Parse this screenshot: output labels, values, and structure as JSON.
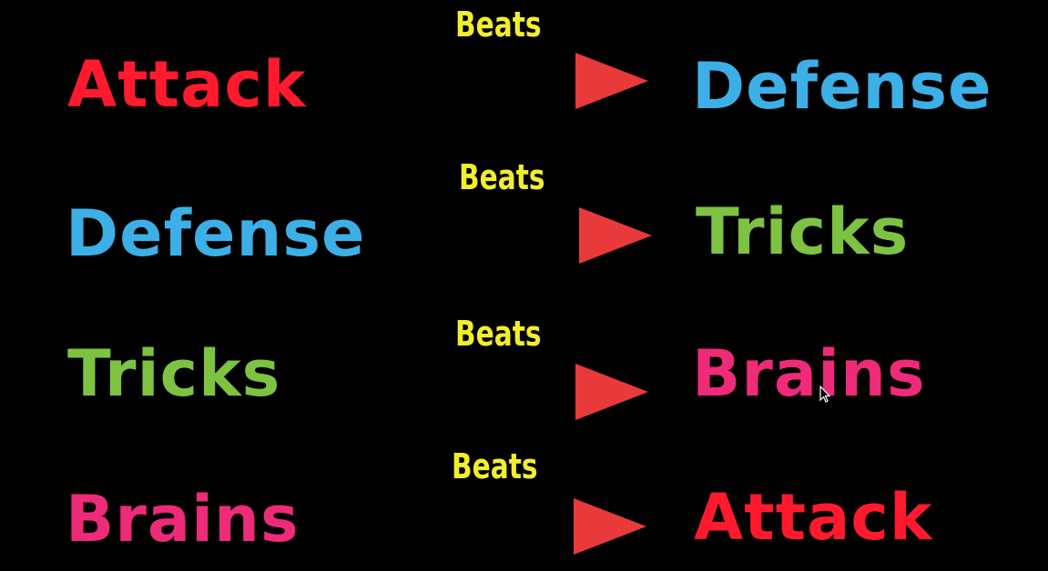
{
  "rows": [
    {
      "left": {
        "text": "Attack",
        "color": "#ff1a2e"
      },
      "verb": "Beats",
      "right": {
        "text": "Defense",
        "color": "#3cb0e6"
      }
    },
    {
      "left": {
        "text": "Defense",
        "color": "#3cb0e6"
      },
      "verb": "Beats",
      "right": {
        "text": "Tricks",
        "color": "#7ec242"
      }
    },
    {
      "left": {
        "text": "Tricks",
        "color": "#7ec242"
      },
      "verb": "Beats",
      "right": {
        "text": "Brains",
        "color": "#ee2b78"
      }
    },
    {
      "left": {
        "text": "Brains",
        "color": "#ee2b78"
      },
      "verb": "Beats",
      "right": {
        "text": "Attack",
        "color": "#ff1a2e"
      }
    }
  ],
  "colors": {
    "background": "#000000",
    "verb": "#f3ee2b",
    "arrow_start": "#8ccb3e",
    "arrow_end": "#e83a3a"
  },
  "icons": {
    "pointer": "mouse-cursor-icon"
  }
}
